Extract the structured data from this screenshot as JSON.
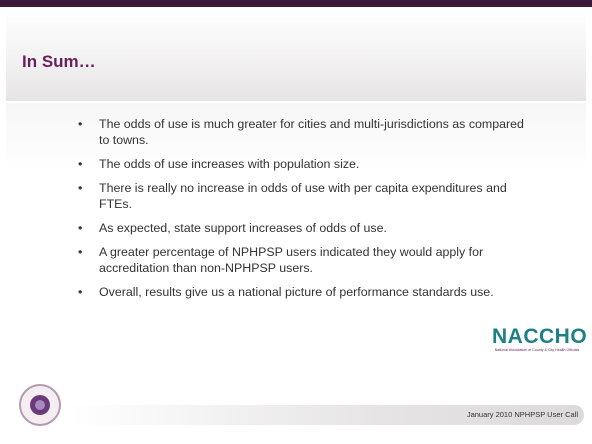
{
  "header": {
    "title": "In Sum…"
  },
  "bullets": [
    "The odds of use is much greater for cities and multi-jurisdictions as compared to towns.",
    "The odds of use increases with population size.",
    "There is really no increase in odds of use with per capita expenditures and FTEs.",
    "As expected, state support increases of odds of use.",
    "A greater percentage of NPHPSP users indicated they would apply for accreditation than non-NPHPSP users.",
    "Overall, results give us a national picture of performance standards use."
  ],
  "logo": {
    "name": "NACCHO",
    "tagline": "National Association of County & City Health Officials"
  },
  "footer": {
    "text": "January 2010 NPHPSP User Call"
  }
}
